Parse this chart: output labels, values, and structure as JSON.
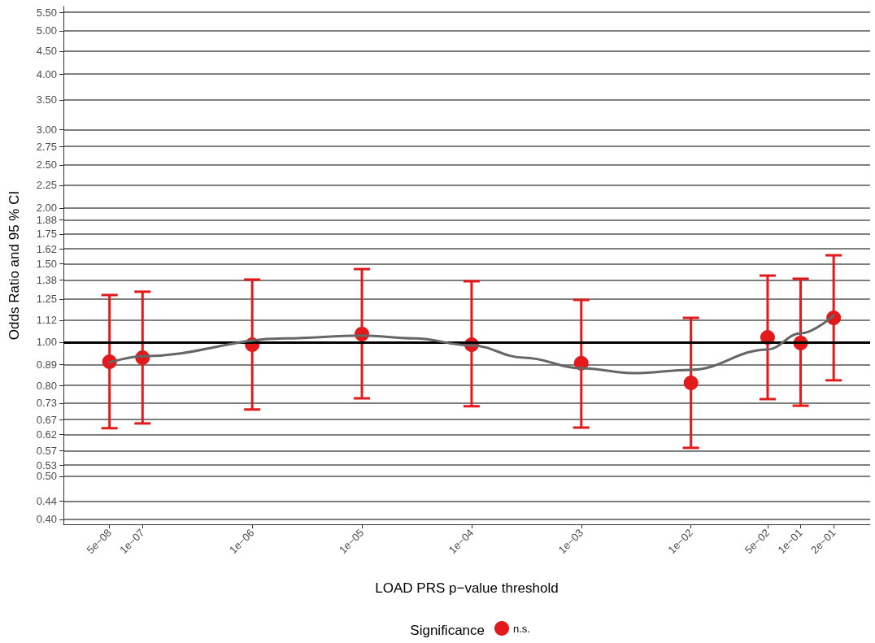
{
  "chart_data": {
    "type": "scatter",
    "xlabel": "LOAD PRS p−value threshold",
    "ylabel": "Odds Ratio and 95 % CI",
    "legend_title": "Significance",
    "legend": "bottom",
    "log": "xy",
    "grid": "y",
    "marker": "circle",
    "xlim": [
      1.9e-08,
      0.43
    ],
    "ylim": [
      0.39,
      5.67
    ],
    "xticks": [
      {
        "value": 5e-08,
        "label": "5e−08"
      },
      {
        "value": 1e-07,
        "label": "1e−07"
      },
      {
        "value": 1e-06,
        "label": "1e−06"
      },
      {
        "value": 1e-05,
        "label": "1e−05"
      },
      {
        "value": 0.0001,
        "label": "1e−04"
      },
      {
        "value": 0.001,
        "label": "1e−03"
      },
      {
        "value": 0.01,
        "label": "1e−02"
      },
      {
        "value": 0.05,
        "label": "5e−02"
      },
      {
        "value": 0.1,
        "label": "1e−01"
      },
      {
        "value": 0.2,
        "label": "2e−01"
      }
    ],
    "yticks": [
      {
        "value": 0.4,
        "label": "0.40"
      },
      0.44,
      {
        "value": 0.5,
        "label": "0.50"
      },
      0.53,
      0.57,
      0.62,
      0.67,
      0.73,
      {
        "value": 0.8,
        "label": "0.80"
      },
      0.89,
      {
        "value": 1,
        "label": "1.00"
      },
      1.12,
      1.25,
      1.38,
      {
        "value": 1.5,
        "label": "1.50"
      },
      1.62,
      1.75,
      1.88,
      {
        "value": 2,
        "label": "2.00"
      },
      2.25,
      {
        "value": 2.5,
        "label": "2.50"
      },
      2.75,
      {
        "value": 3,
        "label": "3.00"
      },
      {
        "value": 3.5,
        "label": "3.50"
      },
      {
        "value": 4,
        "label": "4.00"
      },
      {
        "value": 4.5,
        "label": "4.50"
      },
      {
        "value": 5,
        "label": "5.00"
      },
      {
        "value": 5.5,
        "label": "5.50"
      }
    ],
    "ref_lines": [
      {
        "axis": "y",
        "value": 1,
        "color": "#000000"
      }
    ],
    "series": [
      {
        "name": "n.s.",
        "color": "#e31a1c",
        "x": [
          5e-08,
          1e-07,
          1e-06,
          1e-05,
          0.0001,
          0.001,
          0.01,
          0.05,
          0.1,
          0.2
        ],
        "values": [
          0.904,
          0.923,
          0.987,
          1.043,
          0.987,
          0.897,
          0.81,
          1.025,
          0.996,
          1.134
        ],
        "errors": [
          [
            0.641,
            1.276
          ],
          [
            0.657,
            1.298
          ],
          [
            0.706,
            1.382
          ],
          [
            0.748,
            1.459
          ],
          [
            0.718,
            1.37
          ],
          [
            0.643,
            1.244
          ],
          [
            0.579,
            1.134
          ],
          [
            0.745,
            1.411
          ],
          [
            0.72,
            1.388
          ],
          [
            0.821,
            1.567
          ]
        ]
      },
      {
        "type": "line",
        "color": "#666666",
        "marker": "none",
        "x": [
          5e-08,
          1e-07,
          2e-06,
          1e-05,
          3e-05,
          0.0001,
          0.0003,
          0.001,
          0.003,
          0.01,
          0.05,
          0.1,
          0.2
        ],
        "values": [
          0.9,
          0.93,
          1.02,
          1.035,
          1.02,
          0.983,
          0.923,
          0.874,
          0.852,
          0.867,
          0.963,
          1.047,
          1.149
        ]
      }
    ]
  }
}
